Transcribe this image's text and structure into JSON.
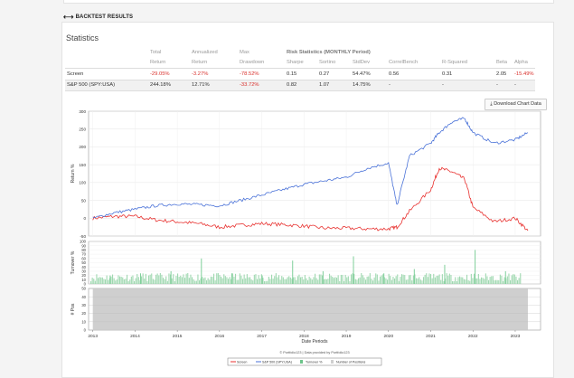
{
  "section": {
    "title": "BACKTEST RESULTS",
    "icon": "expand-arrows-icon"
  },
  "stats": {
    "title": "Statistics",
    "group_header": "Risk Statistics (MONTHLY Period)",
    "headers_top": [
      "",
      "Total",
      "Annualized",
      "Max",
      "",
      "",
      "",
      "",
      "",
      "",
      ""
    ],
    "headers_bottom": [
      "",
      "Return",
      "Return",
      "Drawdown",
      "Sharpe",
      "Sortino",
      "StdDev",
      "CorrelBench",
      "R-Squared",
      "Beta",
      "Alpha"
    ],
    "rows": [
      {
        "name": "Screen",
        "total": "-29.05%",
        "annualized": "-3.27%",
        "drawdown": "-78.52%",
        "sharpe": "0.15",
        "sortino": "0.27",
        "stddev": "54.47%",
        "correl": "0.56",
        "rsq": "0.31",
        "beta": "2.05",
        "alpha": "-15.49%"
      },
      {
        "name": "S&P 500 (SPY:USA)",
        "total": "244.18%",
        "annualized": "12.71%",
        "drawdown": "-33.72%",
        "sharpe": "0.82",
        "sortino": "1.07",
        "stddev": "14.75%",
        "correl": "-",
        "rsq": "-",
        "beta": "-",
        "alpha": "-"
      }
    ]
  },
  "download_button": {
    "label": "Download Chart Data",
    "icon": "download-icon"
  },
  "chart_data": [
    {
      "type": "line",
      "ylabel": "Return %",
      "ylim": [
        -50,
        300
      ],
      "yticks": [
        "300",
        "250",
        "200",
        "150",
        "100",
        "50",
        "0",
        "-50"
      ],
      "x": [
        2013.0,
        2013.5,
        2014.0,
        2014.5,
        2015.0,
        2015.5,
        2016.0,
        2016.5,
        2017.0,
        2017.5,
        2018.0,
        2018.5,
        2019.0,
        2019.5,
        2020.0,
        2020.2,
        2020.5,
        2021.0,
        2021.2,
        2021.5,
        2021.8,
        2022.0,
        2022.5,
        2023.0,
        2023.3
      ],
      "series": [
        {
          "name": "Screen",
          "color": "#e8312f",
          "values": [
            0,
            5,
            5,
            -5,
            -10,
            -15,
            -25,
            -20,
            -15,
            -18,
            -22,
            -28,
            -28,
            -30,
            -30,
            -25,
            20,
            80,
            140,
            130,
            110,
            30,
            -10,
            0,
            -35
          ]
        },
        {
          "name": "S&P 500 (SPY:USA)",
          "color": "#4a72d8",
          "values": [
            0,
            15,
            25,
            35,
            40,
            38,
            35,
            50,
            65,
            80,
            95,
            105,
            115,
            140,
            155,
            35,
            175,
            210,
            240,
            270,
            280,
            240,
            210,
            220,
            240
          ]
        }
      ],
      "grid": true
    },
    {
      "type": "bar",
      "ylabel": "Turnover %",
      "ylim": [
        0,
        100
      ],
      "yticks": [
        "100",
        "90",
        "80",
        "70",
        "60",
        "50",
        "40",
        "30",
        "20",
        "10",
        "0"
      ],
      "series": [
        {
          "name": "Turnover %",
          "color": "#9fd8b0"
        }
      ],
      "spike_heights": [
        20,
        25,
        30,
        60,
        25,
        20,
        55,
        30,
        65,
        25,
        35,
        45,
        80,
        30
      ],
      "grid": true
    },
    {
      "type": "area",
      "ylabel": "# Pos",
      "ylim": [
        0,
        50
      ],
      "yticks": [
        "50",
        "40",
        "30",
        "20",
        "10",
        "0"
      ],
      "series": [
        {
          "name": "Number of Positions",
          "color": "#cfcfcf",
          "value": 50
        }
      ],
      "grid": true
    }
  ],
  "x_axis": {
    "label": "Date Periods",
    "ticks": [
      "2013",
      "2014",
      "2015",
      "2016",
      "2017",
      "2018",
      "2019",
      "2020",
      "2021",
      "2022",
      "2023"
    ]
  },
  "credit": "© Portfolio123 | Data provided by Portfolio123",
  "legend": [
    {
      "label": "Screen",
      "color": "#e8312f",
      "kind": "line"
    },
    {
      "label": "S&P 500 (SPY:USA)",
      "color": "#4a72d8",
      "kind": "line"
    },
    {
      "label": "Turnover %",
      "color": "#6cc48a",
      "kind": "box"
    },
    {
      "label": "Number of Positions",
      "color": "#cfcfcf",
      "kind": "box"
    }
  ]
}
